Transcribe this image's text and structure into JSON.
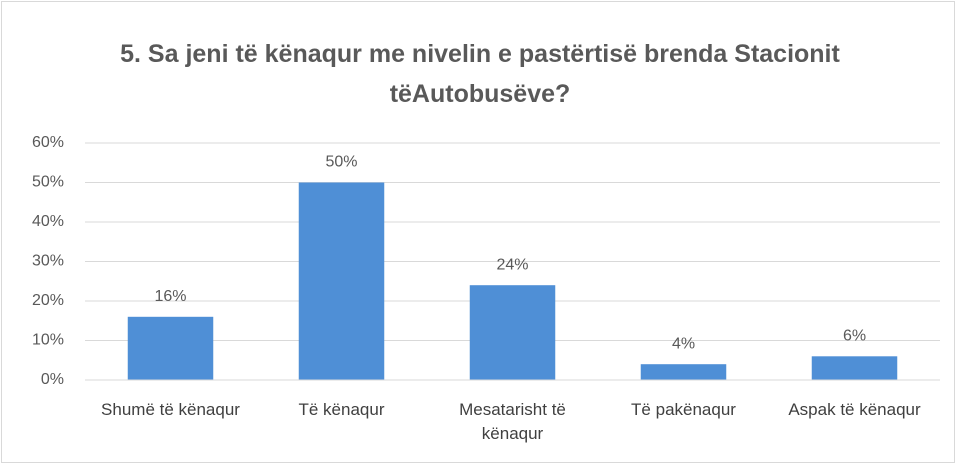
{
  "chart_data": {
    "type": "bar",
    "title": "5. Sa jeni të kënaqur me nivelin e pastërtisë brenda Stacionit tëAutobusëve?",
    "categories": [
      "Shumë të kënaqur",
      "Të kënaqur",
      "Mesatarisht të kënaqur",
      "Të pakënaqur",
      "Aspak të kënaqur"
    ],
    "values": [
      16,
      50,
      24,
      4,
      6
    ],
    "value_labels": [
      "16%",
      "50%",
      "24%",
      "4%",
      "6%"
    ],
    "color": "#4f8fd6",
    "ylim": [
      0,
      60
    ],
    "yticks": [
      {
        "value": 0,
        "label": "0%"
      },
      {
        "value": 10,
        "label": "10%"
      },
      {
        "value": 20,
        "label": "20%"
      },
      {
        "value": 30,
        "label": "30%"
      },
      {
        "value": 40,
        "label": "40%"
      },
      {
        "value": 50,
        "label": "50%"
      },
      {
        "value": 60,
        "label": "60%"
      }
    ],
    "grid": true
  }
}
